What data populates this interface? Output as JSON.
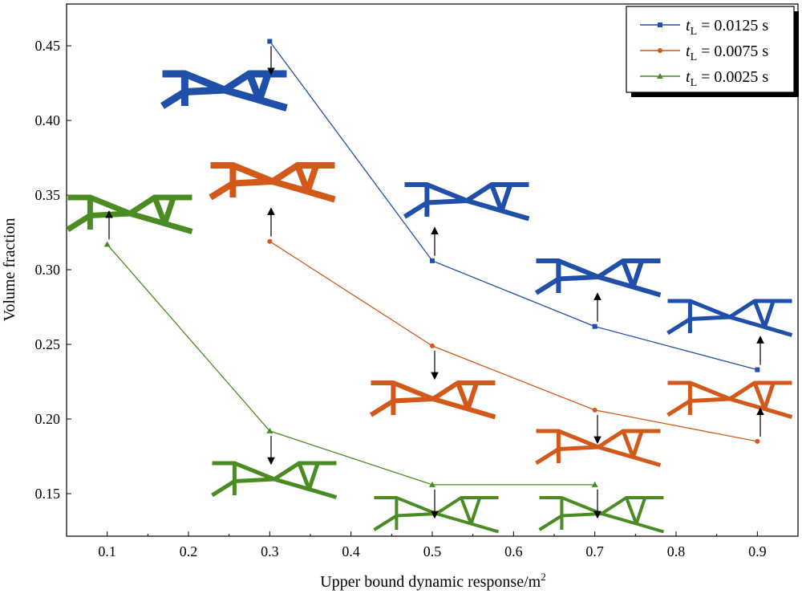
{
  "chart_data": {
    "type": "line",
    "title": "",
    "xlabel": "Upper bound dynamic response/m",
    "xlabel_sup": "2",
    "ylabel": "Volume fraction",
    "xlim": [
      0.05,
      0.95
    ],
    "ylim": [
      0.1215,
      0.478
    ],
    "xticks": [
      "0.1",
      "0.2",
      "0.3",
      "0.4",
      "0.5",
      "0.6",
      "0.7",
      "0.8",
      "0.9"
    ],
    "xtick_values": [
      0.1,
      0.2,
      0.3,
      0.4,
      0.5,
      0.6,
      0.7,
      0.8,
      0.9
    ],
    "yticks": [
      "0.15",
      "0.20",
      "0.25",
      "0.30",
      "0.35",
      "0.40",
      "0.45"
    ],
    "ytick_values": [
      0.15,
      0.2,
      0.25,
      0.3,
      0.35,
      0.4,
      0.45
    ],
    "grid": false,
    "legend_position": "top-right",
    "series": [
      {
        "name": "t",
        "sub": "L",
        "label_rest": " = 0.0125 s",
        "color": "#1f4fa8",
        "marker": "square",
        "x": [
          0.3,
          0.5,
          0.7,
          0.9
        ],
        "y": [
          0.453,
          0.306,
          0.262,
          0.233
        ]
      },
      {
        "name": "t",
        "sub": "L",
        "label_rest": " = 0.0075 s",
        "color": "#d2591a",
        "marker": "circle",
        "x": [
          0.3,
          0.5,
          0.7,
          0.9
        ],
        "y": [
          0.319,
          0.249,
          0.206,
          0.185
        ]
      },
      {
        "name": "t",
        "sub": "L",
        "label_rest": " = 0.0025 s",
        "color": "#4a8c23",
        "marker": "triangle",
        "x": [
          0.1,
          0.3,
          0.5,
          0.7
        ],
        "y": [
          0.317,
          0.192,
          0.156,
          0.156
        ]
      }
    ]
  }
}
